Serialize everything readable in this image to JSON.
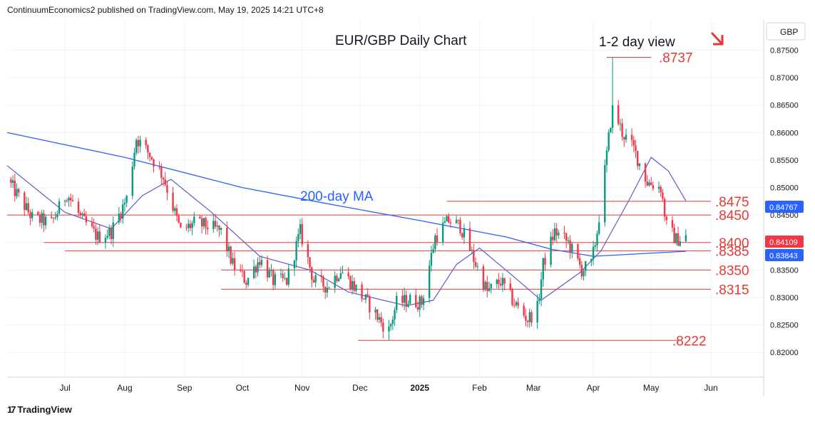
{
  "header": {
    "published_by": "ContinuumEconomics2 published on TradingView.com, May 19, 2025 14:21 UTC+8"
  },
  "footer": {
    "brand": "TradingView",
    "logo_glyph": "17"
  },
  "currency_label": "GBP",
  "colors": {
    "up": "#089981",
    "down": "#f23645",
    "ma200": "#2962ff",
    "ma_short": "#5b5fc7",
    "level": "#e53935",
    "grid": "#f0f3fa",
    "axis_text": "#131722"
  },
  "annotations": {
    "title": "EUR/GBP Daily Chart",
    "view": "1-2 day view",
    "ma_label": "200-day MA"
  },
  "chart_data": {
    "type": "candlestick",
    "title": "EUR/GBP Daily Chart",
    "x_ticks": [
      "Jul",
      "Aug",
      "Sep",
      "Oct",
      "Nov",
      "Dec",
      "2025",
      "Feb",
      "Mar",
      "Apr",
      "May",
      "Jun"
    ],
    "y_ticks": [
      "0.87500",
      "0.87000",
      "0.86500",
      "0.86000",
      "0.85500",
      "0.85000",
      "0.84500",
      "0.84000",
      "0.83500",
      "0.83000",
      "0.82500",
      "0.82000"
    ],
    "ylim": [
      0.8155,
      0.8805
    ],
    "last_price_label": "0.84109",
    "ma_value_label": "0.83843",
    "level_value_label": "0.84767",
    "levels": [
      {
        "label": ".8737",
        "value": 0.8737,
        "start": "2025-04-08",
        "end": "2025-05-01"
      },
      {
        "label": ".8475",
        "value": 0.8475,
        "start": "2025-01-15",
        "end": "2025-06-01"
      },
      {
        "label": ".8450",
        "value": 0.845,
        "start": "2024-06-01",
        "end": "2025-06-01"
      },
      {
        "label": ".8400",
        "value": 0.84,
        "start": "2024-06-20",
        "end": "2025-06-01"
      },
      {
        "label": ".8385",
        "value": 0.8385,
        "start": "2024-07-01",
        "end": "2025-06-01"
      },
      {
        "label": ".8350",
        "value": 0.835,
        "start": "2024-09-20",
        "end": "2025-06-01"
      },
      {
        "label": ".8315",
        "value": 0.8315,
        "start": "2024-09-20",
        "end": "2025-06-01"
      },
      {
        "label": ".8222",
        "value": 0.8222,
        "start": "2024-11-30",
        "end": "2025-05-15"
      }
    ],
    "close_path": [
      [
        "2024-06-01",
        0.8515
      ],
      [
        "2024-06-14",
        0.8445
      ],
      [
        "2024-06-24",
        0.8435
      ],
      [
        "2024-07-02",
        0.849
      ],
      [
        "2024-07-10",
        0.844
      ],
      [
        "2024-07-18",
        0.841
      ],
      [
        "2024-07-25",
        0.842
      ],
      [
        "2024-08-02",
        0.848
      ],
      [
        "2024-08-07",
        0.859
      ],
      [
        "2024-08-14",
        0.856
      ],
      [
        "2024-08-21",
        0.852
      ],
      [
        "2024-08-30",
        0.842
      ],
      [
        "2024-09-06",
        0.8435
      ],
      [
        "2024-09-13",
        0.843
      ],
      [
        "2024-09-20",
        0.842
      ],
      [
        "2024-09-26",
        0.836
      ],
      [
        "2024-10-03",
        0.833
      ],
      [
        "2024-10-10",
        0.837
      ],
      [
        "2024-10-17",
        0.833
      ],
      [
        "2024-10-24",
        0.833
      ],
      [
        "2024-10-31",
        0.842
      ],
      [
        "2024-11-07",
        0.833
      ],
      [
        "2024-11-14",
        0.832
      ],
      [
        "2024-11-21",
        0.835
      ],
      [
        "2024-11-28",
        0.832
      ],
      [
        "2024-12-05",
        0.829
      ],
      [
        "2024-12-12",
        0.8255
      ],
      [
        "2024-12-16",
        0.824
      ],
      [
        "2024-12-20",
        0.829
      ],
      [
        "2024-12-27",
        0.8295
      ],
      [
        "2025-01-02",
        0.829
      ],
      [
        "2025-01-09",
        0.841
      ],
      [
        "2025-01-16",
        0.844
      ],
      [
        "2025-01-22",
        0.843
      ],
      [
        "2025-01-29",
        0.837
      ],
      [
        "2025-02-05",
        0.831
      ],
      [
        "2025-02-12",
        0.833
      ],
      [
        "2025-02-19",
        0.829
      ],
      [
        "2025-02-26",
        0.826
      ],
      [
        "2025-03-03",
        0.828
      ],
      [
        "2025-03-06",
        0.836
      ],
      [
        "2025-03-12",
        0.842
      ],
      [
        "2025-03-19",
        0.84
      ],
      [
        "2025-03-26",
        0.835
      ],
      [
        "2025-03-31",
        0.836
      ],
      [
        "2025-04-03",
        0.842
      ],
      [
        "2025-04-07",
        0.853
      ],
      [
        "2025-04-11",
        0.865
      ],
      [
        "2025-04-16",
        0.86
      ],
      [
        "2025-04-22",
        0.857
      ],
      [
        "2025-04-29",
        0.851
      ],
      [
        "2025-05-06",
        0.85
      ],
      [
        "2025-05-09",
        0.843
      ],
      [
        "2025-05-14",
        0.8405
      ],
      [
        "2025-05-19",
        0.8411
      ]
    ],
    "ma200_path": [
      [
        "2024-06-01",
        0.86
      ],
      [
        "2024-08-01",
        0.8555
      ],
      [
        "2024-10-01",
        0.85
      ],
      [
        "2024-11-15",
        0.847
      ],
      [
        "2025-01-01",
        0.844
      ],
      [
        "2025-02-15",
        0.841
      ],
      [
        "2025-03-10",
        0.8388
      ],
      [
        "2025-04-01",
        0.8375
      ],
      [
        "2025-05-19",
        0.8384
      ]
    ],
    "ma_short_path": [
      [
        "2024-06-01",
        0.854
      ],
      [
        "2024-07-01",
        0.8455
      ],
      [
        "2024-07-25",
        0.8425
      ],
      [
        "2024-08-10",
        0.8485
      ],
      [
        "2024-08-25",
        0.8515
      ],
      [
        "2024-09-15",
        0.8455
      ],
      [
        "2024-10-10",
        0.8375
      ],
      [
        "2024-11-05",
        0.835
      ],
      [
        "2024-11-25",
        0.831
      ],
      [
        "2024-12-25",
        0.8285
      ],
      [
        "2025-01-08",
        0.8295
      ],
      [
        "2025-01-20",
        0.836
      ],
      [
        "2025-02-01",
        0.839
      ],
      [
        "2025-02-18",
        0.834
      ],
      [
        "2025-03-05",
        0.8295
      ],
      [
        "2025-03-25",
        0.8345
      ],
      [
        "2025-04-05",
        0.8385
      ],
      [
        "2025-04-20",
        0.848
      ],
      [
        "2025-05-01",
        0.8555
      ],
      [
        "2025-05-10",
        0.853
      ],
      [
        "2025-05-19",
        0.8476
      ]
    ]
  }
}
